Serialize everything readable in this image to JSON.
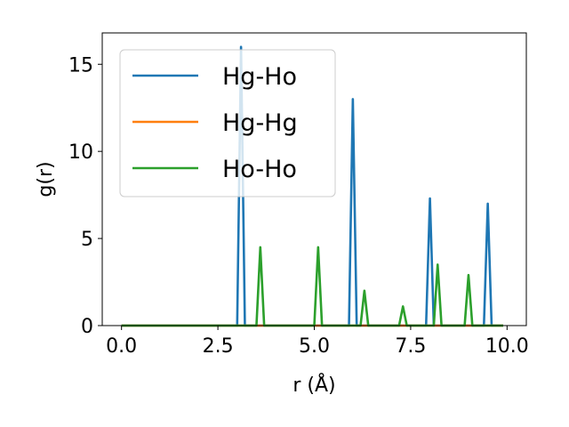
{
  "chart_data": {
    "type": "line",
    "title": "",
    "xlabel": "r (Å)",
    "ylabel": "g(r)",
    "xlim": [
      -0.5,
      10.5
    ],
    "ylim": [
      0,
      16.8
    ],
    "xticks": [
      0.0,
      2.5,
      5.0,
      7.5,
      10.0
    ],
    "xtick_labels": [
      "0.0",
      "2.5",
      "5.0",
      "7.5",
      "10.0"
    ],
    "yticks": [
      0,
      5,
      10,
      15
    ],
    "ytick_labels": [
      "0",
      "5",
      "10",
      "15"
    ],
    "grid": false,
    "legend_position": "upper-left",
    "series": [
      {
        "name": "Hg-Ho",
        "color": "#1f77b4",
        "x": [
          0,
          3.0,
          3.1,
          3.2,
          5.9,
          6.0,
          6.1,
          7.9,
          8.0,
          8.1,
          9.4,
          9.5,
          9.6,
          9.9
        ],
        "y": [
          0,
          0,
          16.0,
          0,
          0,
          13.0,
          0,
          0,
          7.3,
          0,
          0,
          7.0,
          0,
          0
        ]
      },
      {
        "name": "Hg-Hg",
        "color": "#ff7f0e",
        "x": [
          0,
          9.9
        ],
        "y": [
          0,
          0
        ]
      },
      {
        "name": "Ho-Ho",
        "color": "#2ca02c",
        "x": [
          0,
          3.5,
          3.6,
          3.7,
          5.0,
          5.1,
          5.2,
          6.2,
          6.3,
          6.4,
          7.2,
          7.3,
          7.4,
          8.1,
          8.2,
          8.3,
          8.9,
          9.0,
          9.1,
          9.9
        ],
        "y": [
          0,
          0,
          4.5,
          0,
          0,
          4.5,
          0,
          0,
          2.0,
          0,
          0,
          1.1,
          0,
          0,
          3.5,
          0,
          0,
          2.9,
          0,
          0
        ]
      }
    ]
  }
}
